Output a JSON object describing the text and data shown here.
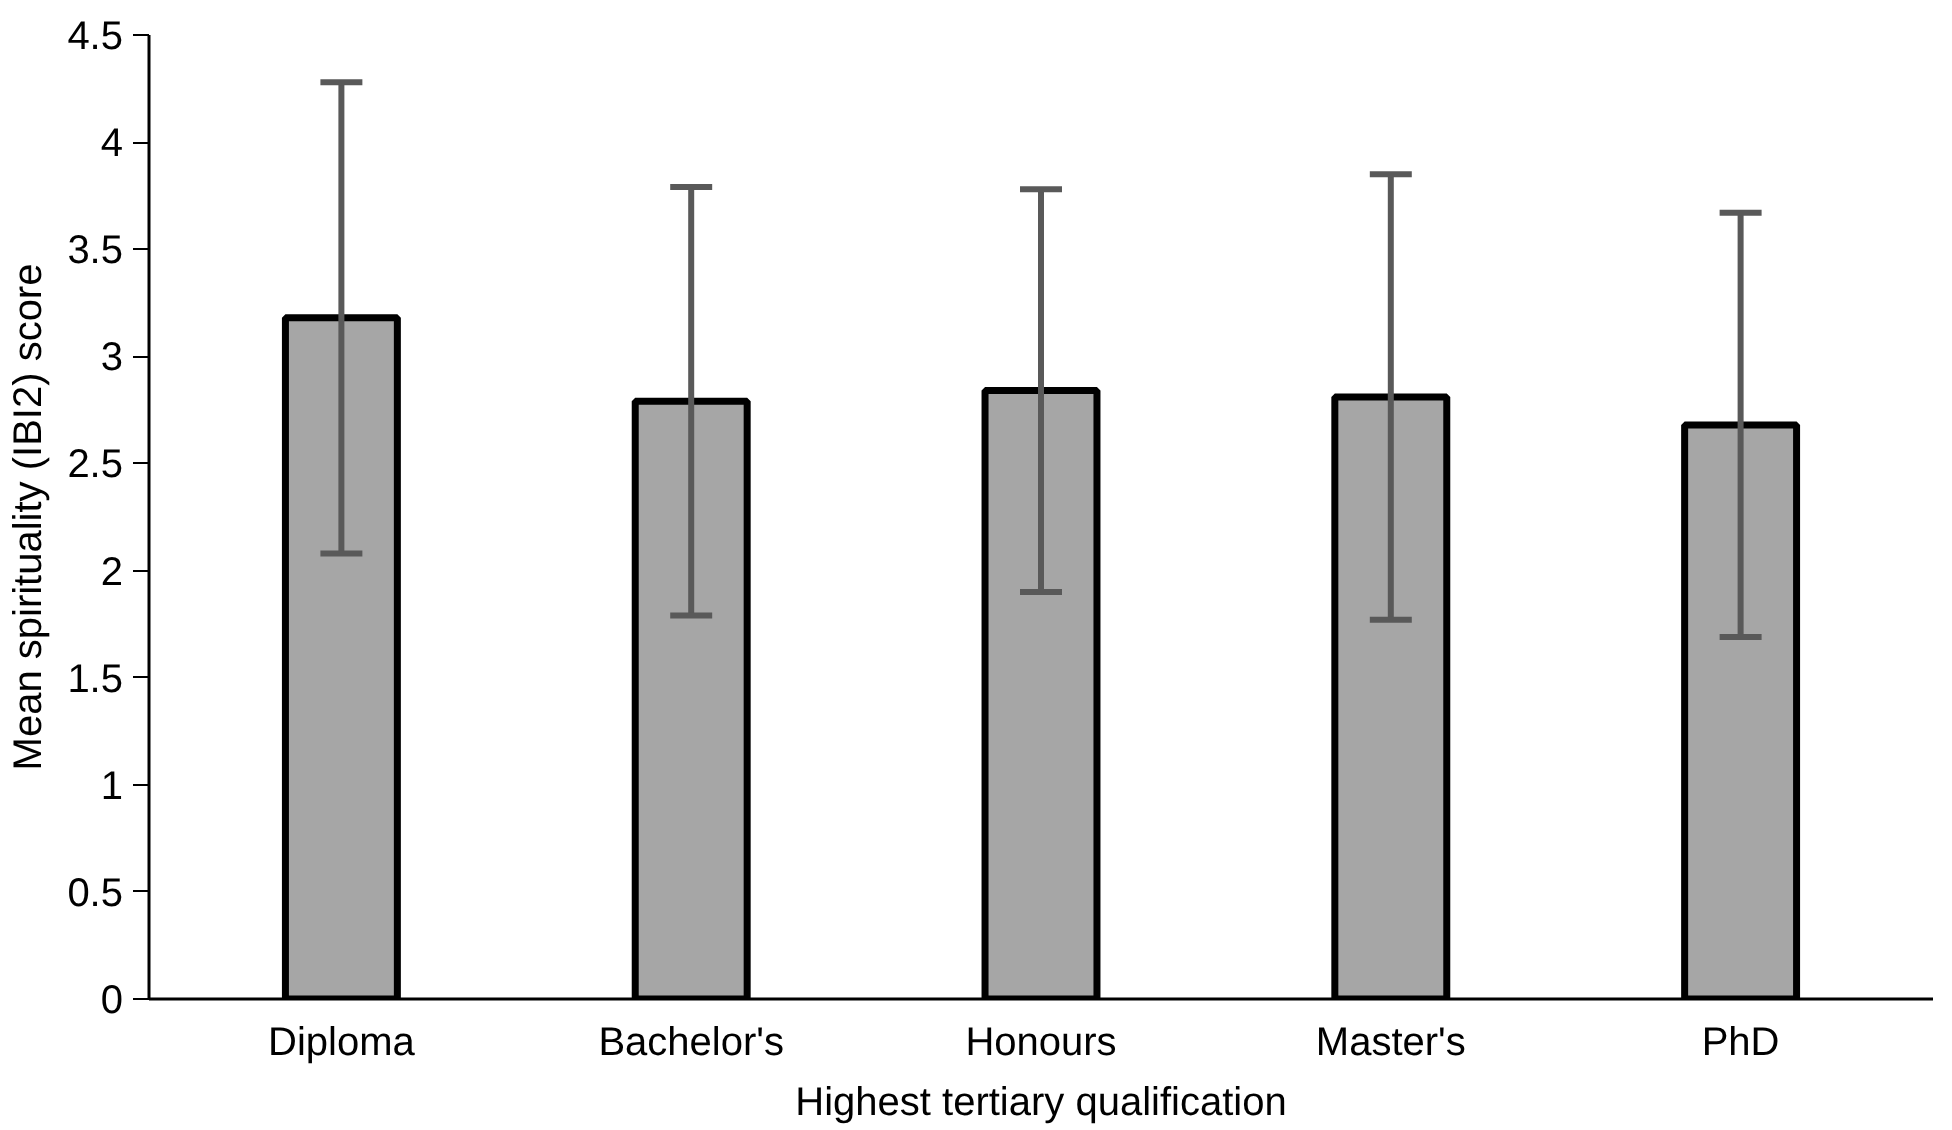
{
  "chart_data": {
    "type": "bar",
    "xlabel": "Highest tertiary qualification",
    "ylabel": "Mean spirituality (IBI2) score",
    "categories": [
      "Diploma",
      "Bachelor's",
      "Honours",
      "Master's",
      "PhD"
    ],
    "values": [
      3.18,
      2.79,
      2.84,
      2.81,
      2.68
    ],
    "errors": [
      1.1,
      1.0,
      0.94,
      1.04,
      0.99
    ],
    "color": "#a6a6a6",
    "ylim": [
      0,
      4.5
    ],
    "yticks": [
      0,
      0.5,
      1,
      1.5,
      2,
      2.5,
      3,
      3.5,
      4,
      4.5
    ],
    "grid": false
  }
}
